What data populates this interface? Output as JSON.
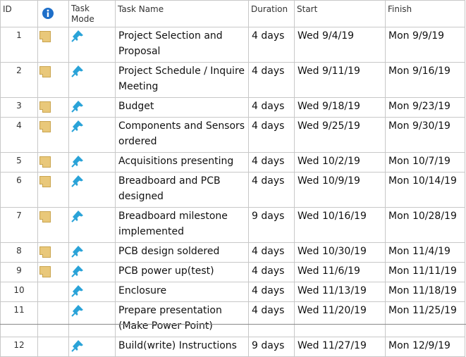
{
  "columns": {
    "id": "ID",
    "info_icon": "info-icon",
    "task_mode": "Task Mode",
    "task_name": "Task Name",
    "duration": "Duration",
    "start": "Start",
    "finish": "Finish"
  },
  "rows": [
    {
      "id": "1",
      "has_note": true,
      "name": "Project Selection and Proposal",
      "duration": "4 days",
      "start": "Wed 9/4/19",
      "finish": "Mon 9/9/19"
    },
    {
      "id": "2",
      "has_note": true,
      "name": "Project Schedule / Inquire Meeting",
      "duration": "4 days",
      "start": "Wed 9/11/19",
      "finish": "Mon 9/16/19"
    },
    {
      "id": "3",
      "has_note": true,
      "name": "Budget",
      "duration": "4 days",
      "start": "Wed 9/18/19",
      "finish": "Mon 9/23/19"
    },
    {
      "id": "4",
      "has_note": true,
      "name": "Components and Sensors ordered",
      "duration": "4 days",
      "start": "Wed 9/25/19",
      "finish": "Mon 9/30/19"
    },
    {
      "id": "5",
      "has_note": true,
      "name": "Acquisitions presenting",
      "duration": "4 days",
      "start": "Wed 10/2/19",
      "finish": "Mon 10/7/19"
    },
    {
      "id": "6",
      "has_note": true,
      "name": "Breadboard and PCB designed",
      "duration": "4 days",
      "start": "Wed 10/9/19",
      "finish": "Mon 10/14/19"
    },
    {
      "id": "7",
      "has_note": true,
      "name": "Breadboard milestone implemented",
      "duration": "9 days",
      "start": "Wed 10/16/19",
      "finish": "Mon 10/28/19"
    },
    {
      "id": "8",
      "has_note": true,
      "name": "PCB design soldered",
      "duration": "4 days",
      "start": "Wed 10/30/19",
      "finish": "Mon 11/4/19"
    },
    {
      "id": "9",
      "has_note": true,
      "name": "PCB power up(test)",
      "duration": "4 days",
      "start": "Wed 11/6/19",
      "finish": "Mon 11/11/19"
    },
    {
      "id": "10",
      "has_note": false,
      "name": "Enclosure",
      "duration": "4 days",
      "start": "Wed 11/13/19",
      "finish": "Mon 11/18/19"
    },
    {
      "id": "11",
      "has_note": false,
      "name": "Prepare presentation (Make Power Point)",
      "duration": "4 days",
      "start": "Wed 11/20/19",
      "finish": "Mon 11/25/19"
    },
    {
      "id": "12",
      "has_note": false,
      "name": "Build(write) Instructions",
      "duration": "9 days",
      "start": "Wed 11/27/19",
      "finish": "Mon 12/9/19"
    }
  ],
  "colors": {
    "info_icon": "#1e6fc9",
    "pin": "#2aa3d8",
    "note": "#e9c87a",
    "grid": "#c8c8c8"
  }
}
